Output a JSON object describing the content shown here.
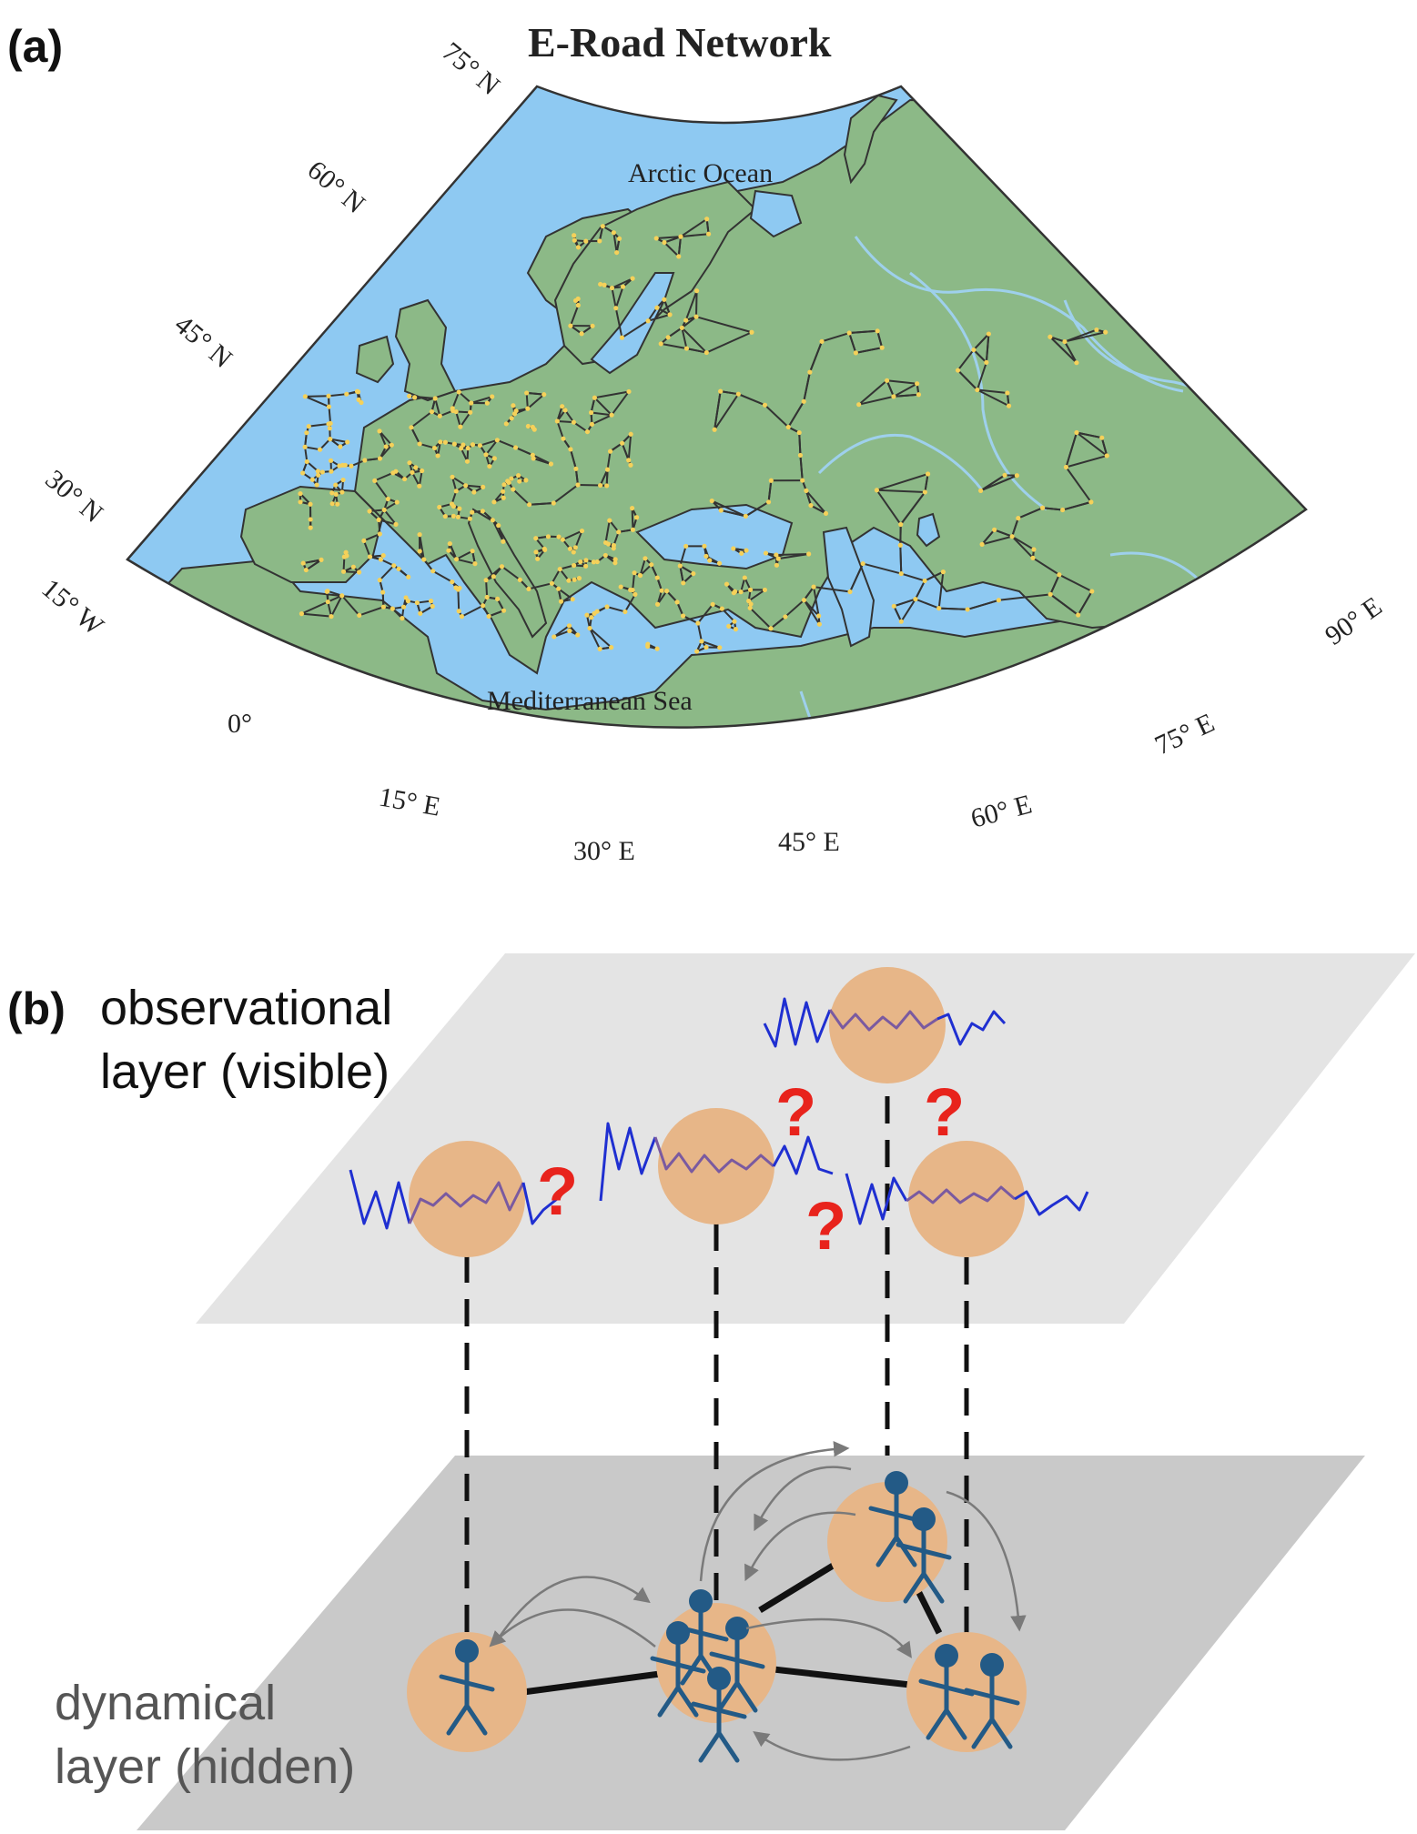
{
  "panel_a": {
    "label": "(a)",
    "title": "E-Road Network",
    "oceans": [
      "Arctic Ocean",
      "Mediterranean Sea"
    ],
    "lat_labels": [
      "75° N",
      "60° N",
      "45° N",
      "30° N"
    ],
    "lon_labels": [
      "15° W",
      "0°",
      "15° E",
      "30° E",
      "45° E",
      "60° E",
      "75° E",
      "90° E"
    ],
    "colors": {
      "sea": "#8ec9f2",
      "land": "#8cb987",
      "road": "#333333",
      "node": "#f5d15a",
      "river": "#9ed0ec"
    }
  },
  "panel_b": {
    "label": "(b)",
    "observational_line1": "observational",
    "observational_line2": "layer (visible)",
    "dynamical_line1": "dynamical",
    "dynamical_line2": "layer (hidden)",
    "question_mark": "?",
    "colors": {
      "node": "#e7b688",
      "signal": "#1f2fd1",
      "signal_inner": "#7a5aa0",
      "question": "#e8231c",
      "person": "#235a86",
      "top_plane": "#e4e4e4",
      "bottom_plane": "#c9c9c9"
    }
  }
}
